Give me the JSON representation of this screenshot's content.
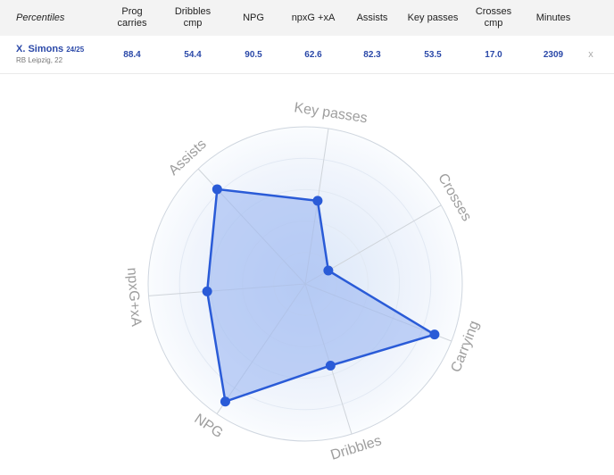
{
  "table": {
    "corner_label": "Percentiles",
    "columns": [
      "Prog carries",
      "Dribbles\ncmp",
      "NPG",
      "npxG +xA",
      "Assists",
      "Key passes",
      "Crosses\ncmp",
      "Minutes"
    ],
    "player": {
      "name": "X. Simons",
      "season": "24/25",
      "team_info": "RB Leipzig, 22",
      "values": [
        "88.4",
        "54.4",
        "90.5",
        "62.6",
        "82.3",
        "53.5",
        "17.0",
        "2309"
      ]
    },
    "remove_label": "x"
  },
  "colors": {
    "accent": "#2a5bd7",
    "fill": "#9db8f2",
    "header_bg": "#f3f3f3",
    "value_text": "#2a48a8"
  },
  "chart_data": {
    "type": "radar",
    "axes": [
      "Key passes",
      "Crosses",
      "Carrying",
      "Dribbles",
      "NPG",
      "npxG+xA",
      "Assists"
    ],
    "rmax": 100,
    "series": [
      {
        "values": [
          53.5,
          17.0,
          88.4,
          54.4,
          90.5,
          62.6,
          82.3
        ]
      }
    ]
  }
}
